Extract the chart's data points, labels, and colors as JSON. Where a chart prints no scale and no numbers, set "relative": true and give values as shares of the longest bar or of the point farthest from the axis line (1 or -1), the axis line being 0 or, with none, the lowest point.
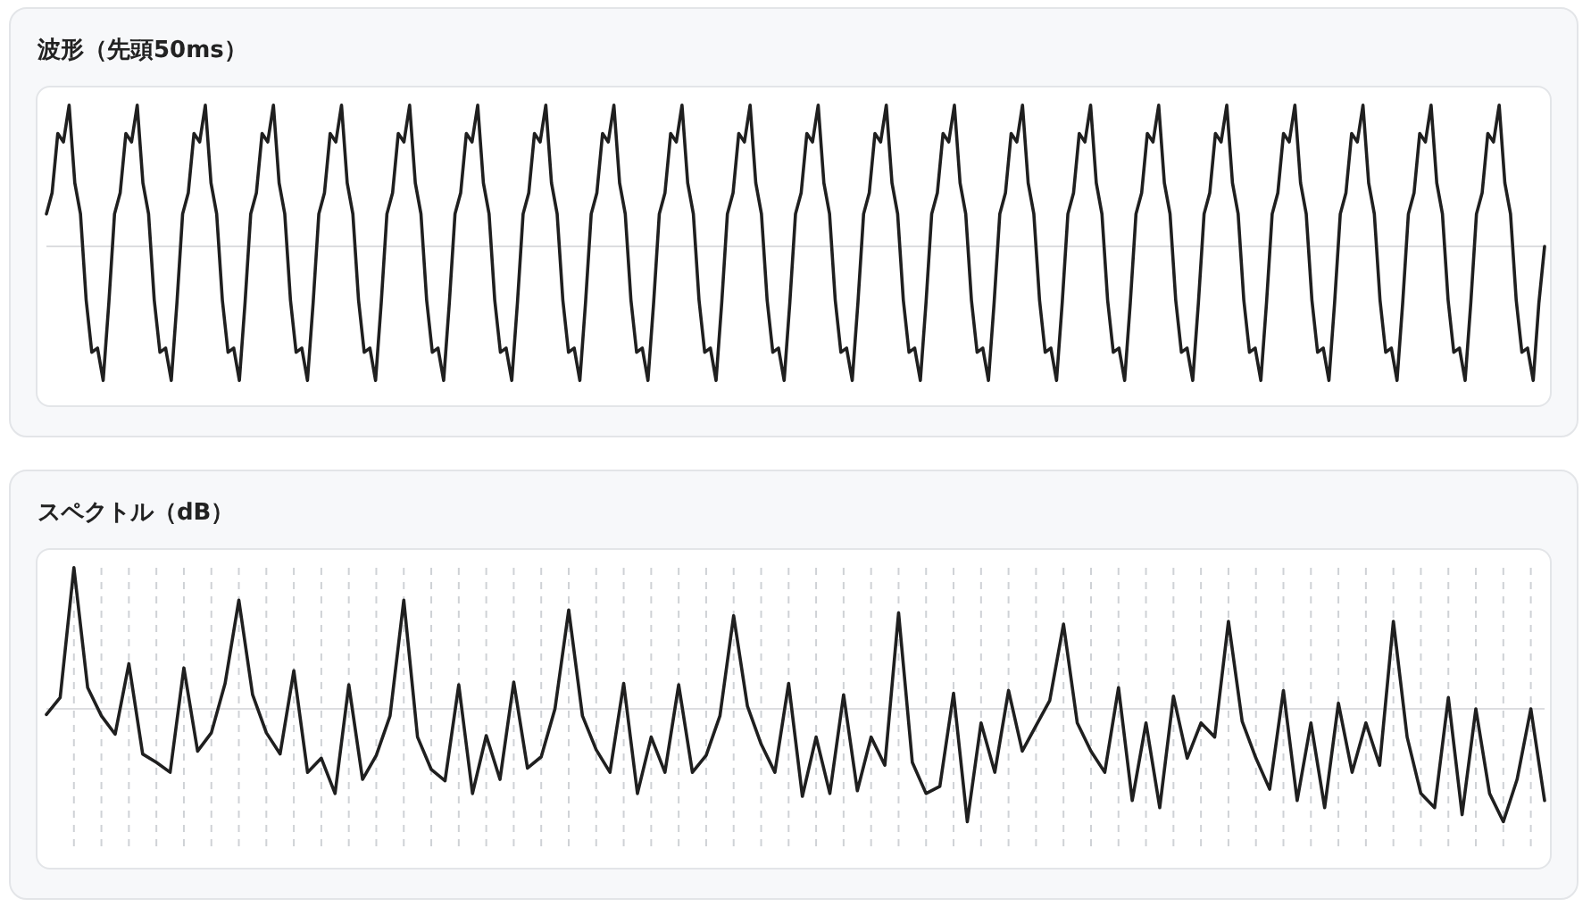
{
  "chart_data": [
    {
      "type": "line",
      "title": "波形（先頭50ms）",
      "relative": true,
      "categories": [
        null,
        null,
        null,
        null,
        null,
        null,
        null,
        null,
        null,
        null,
        null,
        null,
        null,
        null,
        null,
        null,
        null,
        null,
        null,
        null,
        null,
        null,
        null,
        null,
        null,
        null,
        null,
        null,
        null,
        null,
        null,
        null,
        null,
        null,
        null,
        null,
        null,
        null,
        null,
        null,
        null,
        null,
        null,
        null,
        null,
        null,
        null,
        null,
        null,
        null,
        null,
        null,
        null,
        null,
        null,
        null,
        null,
        null,
        null,
        null,
        null,
        null,
        null,
        null,
        null,
        null,
        null,
        null,
        null,
        null,
        null,
        null,
        null,
        null,
        null,
        null,
        null,
        null,
        null,
        null,
        null,
        null,
        null,
        null,
        null,
        null,
        null,
        null,
        null,
        null,
        null,
        null,
        null,
        null,
        null,
        null,
        null,
        null,
        null,
        null,
        null,
        null,
        null,
        null,
        null,
        null,
        null,
        null,
        null,
        null,
        null,
        null,
        null,
        null,
        null,
        null,
        null,
        null,
        null,
        null,
        null,
        null,
        null,
        null,
        null,
        null,
        null,
        null,
        null,
        null,
        null,
        null,
        null,
        null,
        null,
        null,
        null,
        null,
        null,
        null,
        null,
        null,
        null,
        null,
        null,
        null,
        null,
        null,
        null,
        null,
        null,
        null,
        null,
        null,
        null,
        null,
        null,
        null,
        null,
        null,
        null,
        null,
        null,
        null,
        null,
        null,
        null,
        null,
        null,
        null,
        null,
        null,
        null,
        null,
        null,
        null,
        null,
        null,
        null,
        null,
        null,
        null,
        null,
        null,
        null,
        null,
        null,
        null,
        null,
        null,
        null,
        null,
        null,
        null,
        null,
        null,
        null,
        null,
        null,
        null,
        null,
        null,
        null,
        null,
        null,
        null,
        null,
        null,
        null,
        null,
        null,
        null,
        null,
        null,
        null,
        null,
        null,
        null,
        null,
        null,
        null,
        null,
        null,
        null,
        null,
        null,
        null,
        null,
        null,
        null,
        null,
        null,
        null,
        null,
        null,
        null,
        null,
        null,
        null,
        null,
        null,
        null,
        null,
        null,
        null,
        null,
        null,
        null,
        null,
        null,
        null,
        null,
        null,
        null,
        null,
        null,
        null,
        null,
        null,
        null,
        null,
        null,
        null,
        null,
        null
      ],
      "series": [
        {
          "color": "#1f1f1f",
          "values": [
            0.23,
            0.38,
            0.8,
            0.74,
            1.0,
            0.45,
            0.23,
            -0.38,
            -0.75,
            -0.72,
            -0.95,
            -0.4,
            0.23,
            0.38,
            0.8,
            0.74,
            1.0,
            0.45,
            0.23,
            -0.38,
            -0.75,
            -0.72,
            -0.95,
            -0.4,
            0.23,
            0.38,
            0.8,
            0.74,
            1.0,
            0.45,
            0.23,
            -0.38,
            -0.75,
            -0.72,
            -0.95,
            -0.4,
            0.23,
            0.38,
            0.8,
            0.74,
            1.0,
            0.45,
            0.23,
            -0.38,
            -0.75,
            -0.72,
            -0.95,
            -0.4,
            0.23,
            0.38,
            0.8,
            0.74,
            1.0,
            0.45,
            0.23,
            -0.38,
            -0.75,
            -0.72,
            -0.95,
            -0.4,
            0.23,
            0.38,
            0.8,
            0.74,
            1.0,
            0.45,
            0.23,
            -0.38,
            -0.75,
            -0.72,
            -0.95,
            -0.4,
            0.23,
            0.38,
            0.8,
            0.74,
            1.0,
            0.45,
            0.23,
            -0.38,
            -0.75,
            -0.72,
            -0.95,
            -0.4,
            0.23,
            0.38,
            0.8,
            0.74,
            1.0,
            0.45,
            0.23,
            -0.38,
            -0.75,
            -0.72,
            -0.95,
            -0.4,
            0.23,
            0.38,
            0.8,
            0.74,
            1.0,
            0.45,
            0.23,
            -0.38,
            -0.75,
            -0.72,
            -0.95,
            -0.4,
            0.23,
            0.38,
            0.8,
            0.74,
            1.0,
            0.45,
            0.23,
            -0.38,
            -0.75,
            -0.72,
            -0.95,
            -0.4,
            0.23,
            0.38,
            0.8,
            0.74,
            1.0,
            0.45,
            0.23,
            -0.38,
            -0.75,
            -0.72,
            -0.95,
            -0.4,
            0.23,
            0.38,
            0.8,
            0.74,
            1.0,
            0.45,
            0.23,
            -0.38,
            -0.75,
            -0.72,
            -0.95,
            -0.4,
            0.23,
            0.38,
            0.8,
            0.74,
            1.0,
            0.45,
            0.23,
            -0.38,
            -0.75,
            -0.72,
            -0.95,
            -0.4,
            0.23,
            0.38,
            0.8,
            0.74,
            1.0,
            0.45,
            0.23,
            -0.38,
            -0.75,
            -0.72,
            -0.95,
            -0.4,
            0.23,
            0.38,
            0.8,
            0.74,
            1.0,
            0.45,
            0.23,
            -0.38,
            -0.75,
            -0.72,
            -0.95,
            -0.4,
            0.23,
            0.38,
            0.8,
            0.74,
            1.0,
            0.45,
            0.23,
            -0.38,
            -0.75,
            -0.72,
            -0.95,
            -0.4,
            0.23,
            0.38,
            0.8,
            0.74,
            1.0,
            0.45,
            0.23,
            -0.38,
            -0.75,
            -0.72,
            -0.95,
            -0.4,
            0.23,
            0.38,
            0.8,
            0.74,
            1.0,
            0.45,
            0.23,
            -0.38,
            -0.75,
            -0.72,
            -0.95,
            -0.4,
            0.23,
            0.38,
            0.8,
            0.74,
            1.0,
            0.45,
            0.23,
            -0.38,
            -0.75,
            -0.72,
            -0.95,
            -0.4,
            0.23,
            0.38,
            0.8,
            0.74,
            1.0,
            0.45,
            0.23,
            -0.38,
            -0.75,
            -0.72,
            -0.95,
            -0.4,
            0.23,
            0.38,
            0.8,
            0.74,
            1.0,
            0.45,
            0.23,
            -0.38,
            -0.75,
            -0.72,
            -0.95,
            -0.4,
            0.23,
            0.38,
            0.8,
            0.74,
            1.0,
            0.45,
            0.23,
            -0.38,
            -0.75,
            -0.72,
            -0.95,
            -0.4,
            0.0
          ]
        }
      ]
    },
    {
      "type": "line",
      "title": "スペクトル（dB）",
      "relative": true,
      "grid": "x",
      "categories": [
        null,
        null,
        null,
        null,
        null,
        null,
        null,
        null,
        null,
        null,
        null,
        null,
        null,
        null,
        null,
        null,
        null,
        null,
        null,
        null,
        null,
        null,
        null,
        null,
        null,
        null,
        null,
        null,
        null,
        null,
        null,
        null,
        null,
        null,
        null,
        null,
        null,
        null,
        null,
        null,
        null,
        null,
        null,
        null,
        null,
        null,
        null,
        null,
        null,
        null,
        null,
        null,
        null,
        null,
        null,
        null,
        null,
        null,
        null,
        null,
        null,
        null,
        null,
        null,
        null,
        null,
        null,
        null,
        null,
        null,
        null,
        null,
        null,
        null,
        null,
        null,
        null,
        null,
        null,
        null,
        null,
        null,
        null,
        null,
        null,
        null,
        null,
        null,
        null,
        null,
        null,
        null,
        null,
        null,
        null,
        null,
        null,
        null,
        null,
        null,
        null,
        null,
        null,
        null,
        null,
        null,
        null,
        null,
        null,
        null
      ],
      "series": [
        {
          "color": "#1f1f1f",
          "values": [
            -0.04,
            0.08,
            1.0,
            0.15,
            -0.05,
            -0.18,
            0.32,
            -0.32,
            -0.38,
            -0.45,
            0.29,
            -0.3,
            -0.17,
            0.18,
            0.77,
            0.1,
            -0.17,
            -0.32,
            0.27,
            -0.45,
            -0.35,
            -0.6,
            0.17,
            -0.5,
            -0.33,
            -0.05,
            0.77,
            -0.2,
            -0.43,
            -0.51,
            0.17,
            -0.6,
            -0.19,
            -0.5,
            0.19,
            -0.42,
            -0.34,
            0.0,
            0.7,
            -0.05,
            -0.29,
            -0.45,
            0.18,
            -0.6,
            -0.2,
            -0.45,
            0.17,
            -0.45,
            -0.33,
            -0.05,
            0.66,
            0.02,
            -0.25,
            -0.45,
            0.18,
            -0.62,
            -0.2,
            -0.6,
            0.1,
            -0.58,
            -0.2,
            -0.4,
            0.68,
            -0.38,
            -0.6,
            -0.55,
            0.11,
            -0.8,
            -0.1,
            -0.45,
            0.13,
            -0.3,
            -0.12,
            0.06,
            0.6,
            -0.1,
            -0.3,
            -0.45,
            0.15,
            -0.65,
            -0.1,
            -0.7,
            0.09,
            -0.35,
            -0.1,
            -0.2,
            0.62,
            -0.09,
            -0.35,
            -0.57,
            0.13,
            -0.65,
            -0.1,
            -0.7,
            0.04,
            -0.45,
            -0.1,
            -0.4,
            0.62,
            -0.2,
            -0.6,
            -0.7,
            0.08,
            -0.75,
            0.0,
            -0.6,
            -0.8,
            -0.5,
            0.0,
            -0.65
          ]
        }
      ]
    }
  ]
}
